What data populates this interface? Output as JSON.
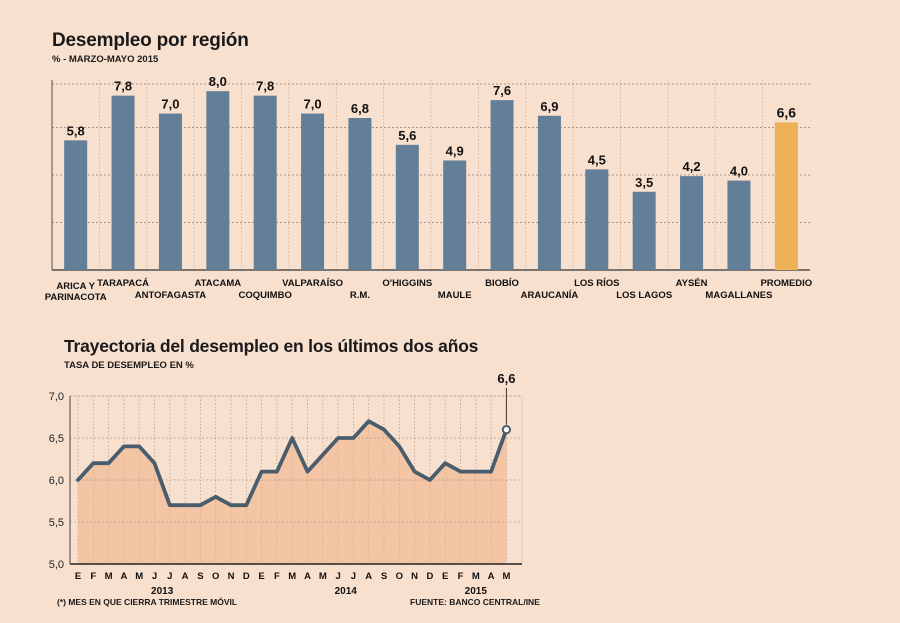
{
  "colors": {
    "background": "#f8e0cf",
    "bar": "#637f97",
    "bar_highlight": "#eeb054",
    "line": "#4a5d6d",
    "area": "#f3c2a0"
  },
  "chart_data": [
    {
      "type": "bar",
      "title": "Desempleo por región",
      "subtitle": "% - MARZO-MAYO 2015",
      "ylim": [
        0,
        8.5
      ],
      "grid": true,
      "highlight": "PROMEDIO",
      "categories": [
        {
          "label": [
            "ARICA Y",
            "PARINACOTA"
          ],
          "row": 1
        },
        {
          "label": [
            "TARAPACÁ"
          ],
          "row": 0
        },
        {
          "label": [
            "ANTOFAGASTA"
          ],
          "row": 1
        },
        {
          "label": [
            "ATACAMA"
          ],
          "row": 0
        },
        {
          "label": [
            "COQUIMBO"
          ],
          "row": 1
        },
        {
          "label": [
            "VALPARAÍSO"
          ],
          "row": 0
        },
        {
          "label": [
            "R.M."
          ],
          "row": 1
        },
        {
          "label": [
            "O'HIGGINS"
          ],
          "row": 0
        },
        {
          "label": [
            "MAULE"
          ],
          "row": 1
        },
        {
          "label": [
            "BIOBÍO"
          ],
          "row": 0
        },
        {
          "label": [
            "ARAUCANÍA"
          ],
          "row": 1
        },
        {
          "label": [
            "LOS RÍOS"
          ],
          "row": 0
        },
        {
          "label": [
            "LOS LAGOS"
          ],
          "row": 1
        },
        {
          "label": [
            "AYSÉN"
          ],
          "row": 0
        },
        {
          "label": [
            "MAGALLANES"
          ],
          "row": 1
        },
        {
          "label": [
            "PROMEDIO"
          ],
          "row": 0
        }
      ],
      "values": [
        5.8,
        7.8,
        7.0,
        8.0,
        7.8,
        7.0,
        6.8,
        5.6,
        4.9,
        7.6,
        6.9,
        4.5,
        3.5,
        4.2,
        4.0,
        6.6
      ],
      "value_labels": [
        "5,8",
        "7,8",
        "7,0",
        "8,0",
        "7,8",
        "7,0",
        "6,8",
        "5,6",
        "4,9",
        "7,6",
        "6,9",
        "4,5",
        "3,5",
        "4,2",
        "4,0",
        "6,6"
      ]
    },
    {
      "type": "area",
      "title": "Trayectoria del desempleo en los últimos dos años",
      "subtitle": "TASA DE DESEMPLEO EN %",
      "ylim": [
        5.0,
        7.0
      ],
      "yticks": [
        "7,0",
        "6,5",
        "6,0",
        "5,5",
        "5,0"
      ],
      "ytick_values": [
        7.0,
        6.5,
        6.0,
        5.5,
        5.0
      ],
      "month_labels": [
        "E",
        "F",
        "M",
        "A",
        "M",
        "J",
        "J",
        "A",
        "S",
        "O",
        "N",
        "D",
        "E",
        "F",
        "M",
        "A",
        "M",
        "J",
        "J",
        "A",
        "S",
        "O",
        "N",
        "D",
        "E",
        "F",
        "M",
        "A",
        "M"
      ],
      "years": [
        {
          "label": "2013",
          "start": 0,
          "end": 11
        },
        {
          "label": "2014",
          "start": 12,
          "end": 23
        },
        {
          "label": "2015",
          "start": 24,
          "end": 28
        }
      ],
      "values": [
        6.0,
        6.2,
        6.2,
        6.4,
        6.4,
        6.2,
        5.7,
        5.7,
        5.7,
        5.8,
        5.7,
        5.7,
        6.1,
        6.1,
        6.5,
        6.1,
        6.3,
        6.5,
        6.5,
        6.7,
        6.6,
        6.4,
        6.1,
        6.0,
        6.2,
        6.1,
        6.1,
        6.1,
        6.6
      ],
      "last_label": "6,6",
      "footnote": "(*) MES EN QUE CIERRA TRIMESTRE MÓVIL",
      "source": "FUENTE: BANCO CENTRAL/INE"
    }
  ]
}
